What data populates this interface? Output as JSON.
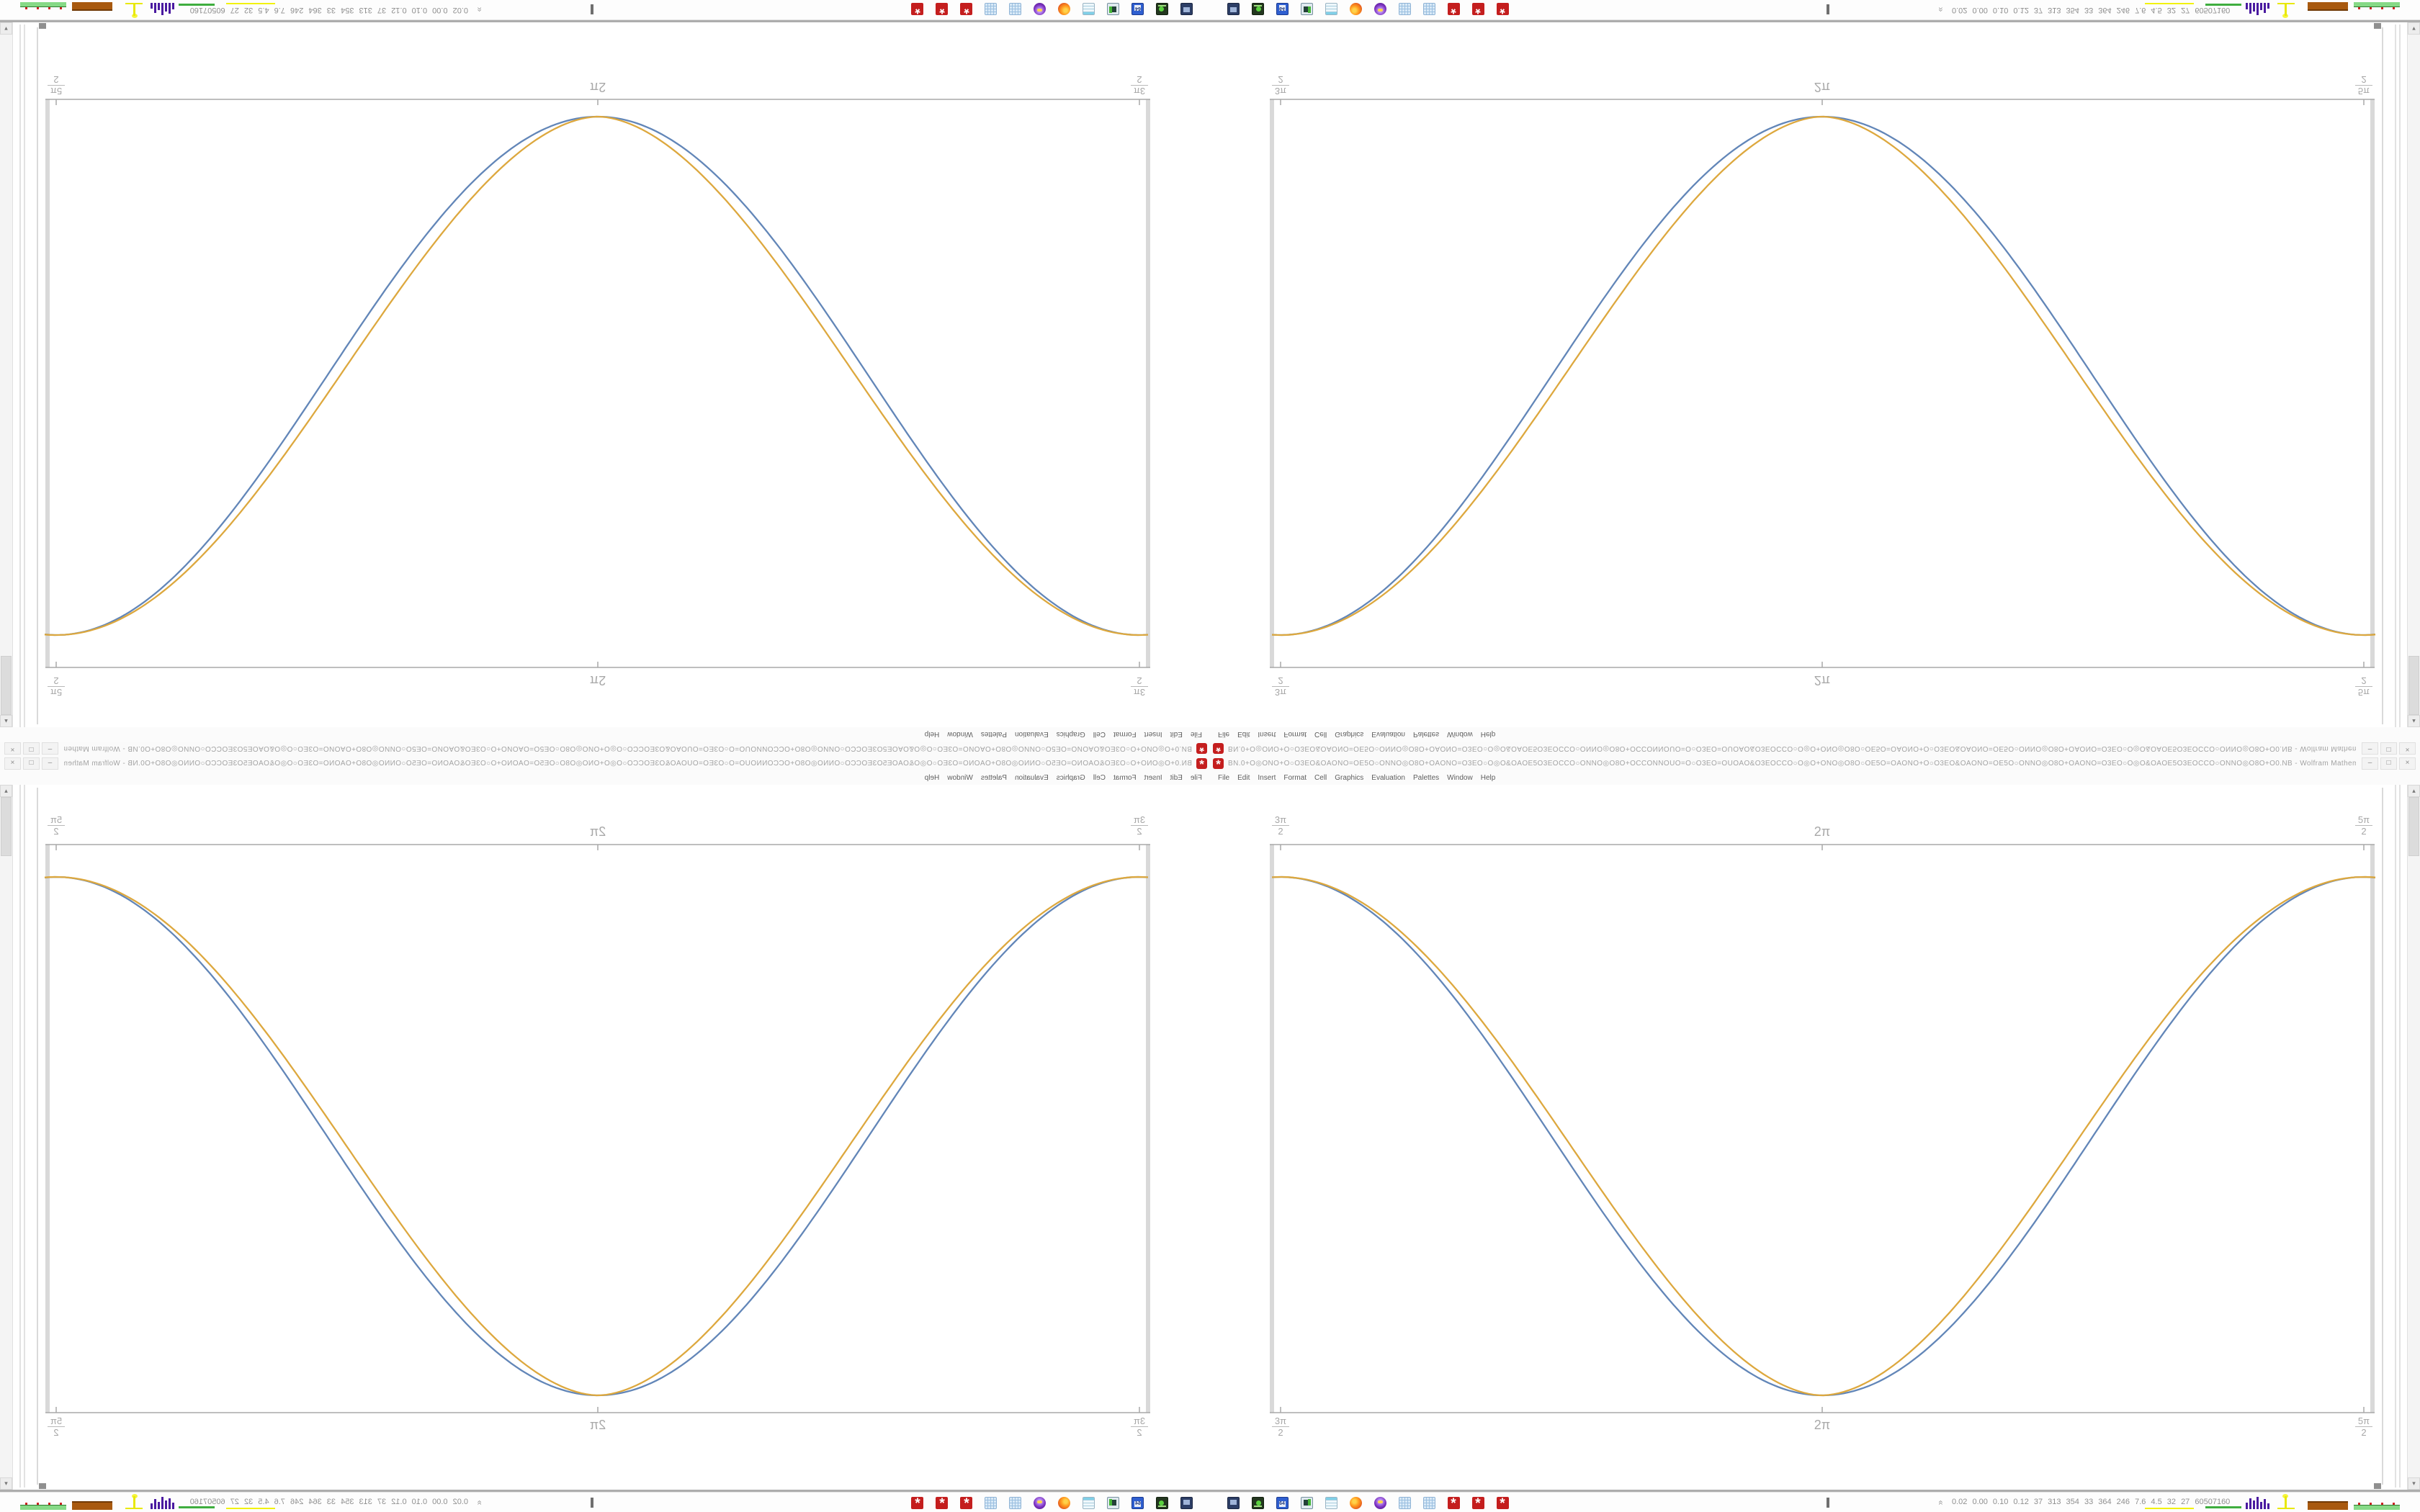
{
  "app": {
    "window_title": "BN.0+O◎ONO+O○O3EO&OAONO=OE5O○ONNO◎O8O+OAONO=O3EO○O◎O&OAOE5O3EOCCO○ONNO◎O8O+OCCONNOUO=O○O3EO=OUOAO&O3EOCCO○O◎O+ONO◎O8O○OE5O=OAONO+O○O3EO&OAONO=OE5O○ONNO◎O8O+OAONO=O3EO○O◎O&OAOE5O3EOCCO○ONNO◎O8O+O0.NB - Wolfram Mathematica 12.2",
    "mma_glyph": "*",
    "controls": {
      "minimize": "–",
      "maximize": "□",
      "close": "×"
    }
  },
  "menu": {
    "items": [
      "File",
      "Edit",
      "Insert",
      "Format",
      "Cell",
      "Graphics",
      "Evaluation",
      "Palettes",
      "Window",
      "Help"
    ]
  },
  "scrollbar": {
    "up": "▴",
    "down": "▾"
  },
  "plot_labels": {
    "left_num": "3π",
    "left_den": "2",
    "center": "2π",
    "right_num": "5π",
    "right_den": "2"
  },
  "chart_data": {
    "type": "line",
    "title": "",
    "xlabel": "",
    "ylabel": "",
    "frame": true,
    "x_axis": {
      "domain_in_pi": [
        1.5,
        2.5
      ],
      "tick_positions_pi": [
        1.5,
        2.0,
        2.5
      ],
      "tick_labels": [
        "3π/2",
        "2π",
        "5π/2"
      ],
      "labels_shown_on": "top and bottom frame edges"
    },
    "y_axis": {
      "range": [
        0,
        1
      ],
      "tick_labels": []
    },
    "series": [
      {
        "name": "sin-squared-blue",
        "color": "#6286b8",
        "exponent": 2,
        "x_pi": [
          1.5,
          1.55,
          1.6,
          1.65,
          1.7,
          1.75,
          1.8,
          1.85,
          1.9,
          1.95,
          2.0,
          2.05,
          2.1,
          2.15,
          2.2,
          2.25,
          2.3,
          2.35,
          2.4,
          2.45,
          2.5
        ],
        "y": [
          1,
          0.976,
          0.905,
          0.794,
          0.655,
          0.5,
          0.345,
          0.206,
          0.095,
          0.024,
          0,
          0.024,
          0.095,
          0.206,
          0.345,
          0.5,
          0.655,
          0.794,
          0.905,
          0.976,
          1
        ]
      },
      {
        "name": "sin-power-orange",
        "color": "#dda83e",
        "exponent": 1.8,
        "x_pi": [
          1.5,
          1.55,
          1.6,
          1.65,
          1.7,
          1.75,
          1.8,
          1.85,
          1.9,
          1.95,
          2.0,
          2.05,
          2.1,
          2.15,
          2.2,
          2.25,
          2.3,
          2.35,
          2.4,
          2.45,
          2.5
        ],
        "y": [
          1,
          0.978,
          0.914,
          0.813,
          0.683,
          0.536,
          0.384,
          0.241,
          0.12,
          0.035,
          0,
          0.035,
          0.12,
          0.241,
          0.384,
          0.536,
          0.683,
          0.813,
          0.914,
          0.978,
          1
        ]
      }
    ]
  },
  "taskbar": {
    "status_chevron": "«",
    "status_text": "0.02 0.00  0.10  0.12   37   313 354   33   364 246   7.6   4.5   32   27   60507160",
    "floppy_label": "64",
    "window_buttons": [
      "monitor-dark-app",
      "device-green-app",
      "floppy-disk-64-app",
      "monitor-plant-app",
      "notepad-app",
      "firefox-browser",
      "purple-owl-app",
      "calculator-app",
      "calculator-app",
      "mathematica-notebook",
      "mathematica-notebook",
      "mathematica-notebook"
    ]
  }
}
